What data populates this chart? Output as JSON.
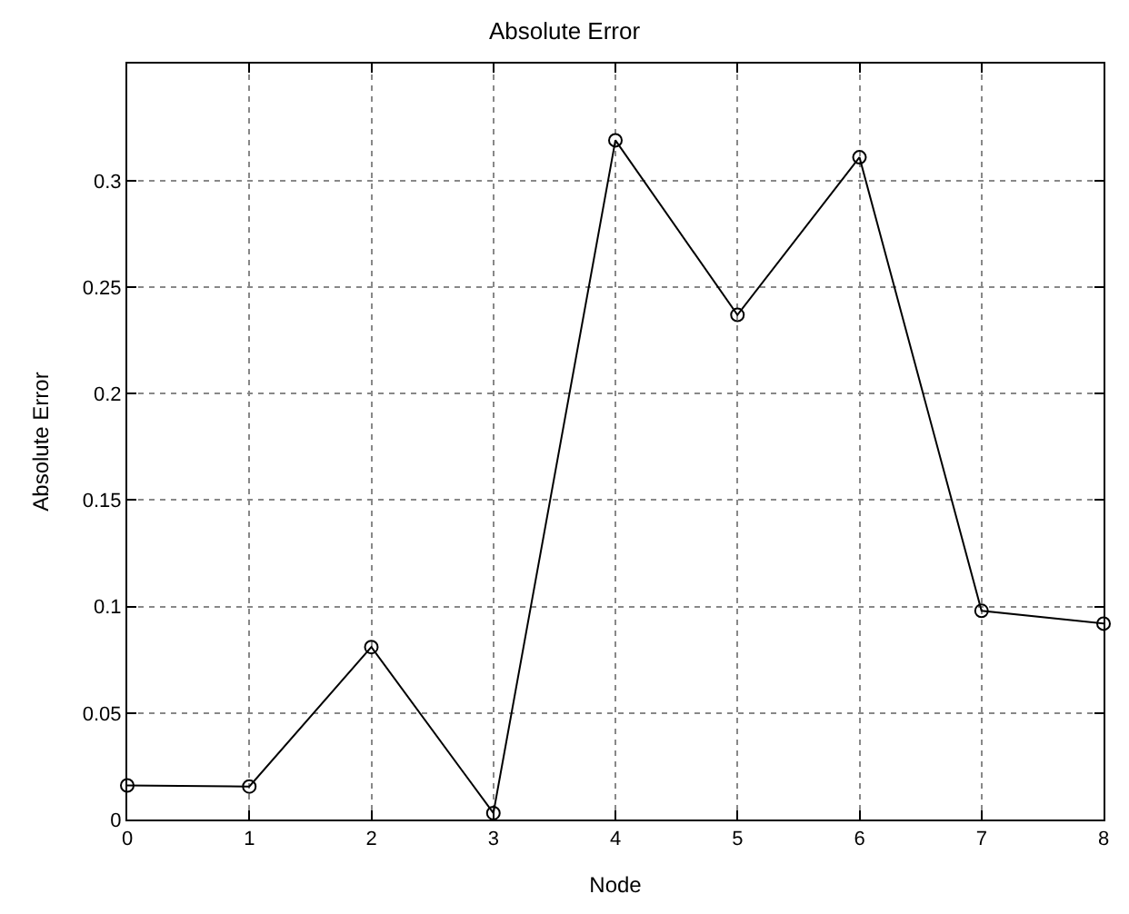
{
  "chart_data": {
    "type": "line",
    "title": "Absolute Error",
    "xlabel": "Node",
    "ylabel": "Absolute Error",
    "x": [
      0,
      1,
      2,
      3,
      4,
      5,
      6,
      7,
      8
    ],
    "series": [
      {
        "color": "#000000",
        "values": [
          0.016,
          0.0155,
          0.081,
          0.003,
          0.319,
          0.237,
          0.311,
          0.098,
          0.092
        ]
      }
    ],
    "xlim": [
      0,
      8
    ],
    "xticks": [
      0,
      1,
      2,
      3,
      4,
      5,
      6,
      7,
      8
    ],
    "ylim": [
      0,
      0.355
    ],
    "yticks": [
      0,
      0.05,
      0.1,
      0.15,
      0.2,
      0.25,
      0.3
    ],
    "grid": true,
    "marker": "circle",
    "line_style": "solid",
    "legend": false
  }
}
